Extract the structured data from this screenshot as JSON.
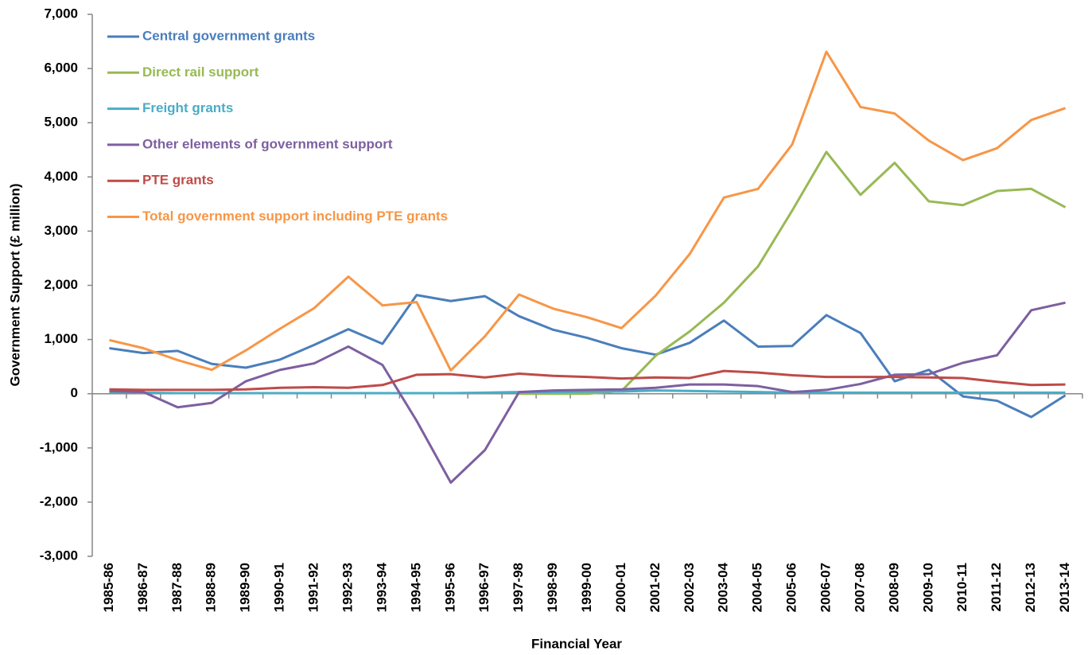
{
  "chart_data": {
    "type": "line",
    "xlabel": "Financial Year",
    "ylabel": "Government Support (£ million)",
    "categories": [
      "1985-86",
      "1986-87",
      "1987-88",
      "1988-89",
      "1989-90",
      "1990-91",
      "1991-92",
      "1992-93",
      "1993-94",
      "1994-95",
      "1995-96",
      "1996-97",
      "1997-98",
      "1998-99",
      "1999-00",
      "2000-01",
      "2001-02",
      "2002-03",
      "2003-04",
      "2004-05",
      "2005-06",
      "2006-07",
      "2007-08",
      "2008-09",
      "2009-10",
      "2010-11",
      "2011-12",
      "2012-13",
      "2013-14"
    ],
    "series": [
      {
        "name": "Central government grants",
        "color": "#4a7ebb",
        "values": [
          840,
          750,
          790,
          550,
          480,
          630,
          900,
          1190,
          920,
          1820,
          1710,
          1800,
          1430,
          1180,
          1030,
          840,
          720,
          940,
          1350,
          870,
          880,
          1450,
          1120,
          230,
          440,
          -50,
          -130,
          -430,
          -30
        ]
      },
      {
        "name": "Direct rail support",
        "color": "#98b954",
        "values": [
          null,
          null,
          null,
          null,
          null,
          null,
          null,
          null,
          null,
          null,
          null,
          null,
          0,
          0,
          0,
          50,
          700,
          1150,
          1680,
          2350,
          3380,
          4460,
          3670,
          4260,
          3550,
          3480,
          3740,
          3780,
          3440
        ]
      },
      {
        "name": "Freight grants",
        "color": "#4bacc6",
        "values": [
          30,
          20,
          10,
          10,
          10,
          10,
          10,
          10,
          10,
          10,
          10,
          20,
          30,
          30,
          40,
          40,
          60,
          50,
          40,
          30,
          20,
          20,
          20,
          20,
          20,
          20,
          20,
          20,
          20
        ]
      },
      {
        "name": "Other elements of government support",
        "color": "#7d5fa0",
        "values": [
          50,
          30,
          -250,
          -170,
          230,
          440,
          560,
          870,
          530,
          -500,
          -1640,
          -1040,
          30,
          60,
          70,
          80,
          110,
          170,
          170,
          140,
          30,
          70,
          180,
          350,
          360,
          570,
          710,
          1540,
          1680
        ]
      },
      {
        "name": "PTE grants",
        "color": "#be4b48",
        "values": [
          80,
          70,
          70,
          70,
          80,
          110,
          120,
          110,
          160,
          350,
          360,
          300,
          370,
          330,
          310,
          280,
          300,
          290,
          420,
          390,
          340,
          310,
          310,
          310,
          300,
          290,
          220,
          160,
          170
        ]
      },
      {
        "name": "Total government support including PTE grants",
        "color": "#f79646",
        "values": [
          990,
          840,
          620,
          440,
          800,
          1200,
          1580,
          2160,
          1630,
          1690,
          430,
          1060,
          1830,
          1570,
          1410,
          1210,
          1810,
          2580,
          3620,
          3780,
          4600,
          6310,
          5290,
          5170,
          4670,
          4310,
          4530,
          5050,
          5270
        ]
      }
    ],
    "ylim": [
      -3000,
      7000
    ],
    "yticks": [
      {
        "value": -3000,
        "label": "-3,000"
      },
      {
        "value": -2000,
        "label": "-2,000"
      },
      {
        "value": -1000,
        "label": "-1,000"
      },
      0,
      {
        "value": 1000,
        "label": "1,000"
      },
      {
        "value": 2000,
        "label": "2,000"
      },
      {
        "value": 3000,
        "label": "3,000"
      },
      {
        "value": 4000,
        "label": "4,000"
      },
      {
        "value": 5000,
        "label": "5,000"
      },
      {
        "value": 6000,
        "label": "6,000"
      },
      {
        "value": 7000,
        "label": "7,000"
      }
    ],
    "grid": false,
    "legend": "upper left"
  }
}
